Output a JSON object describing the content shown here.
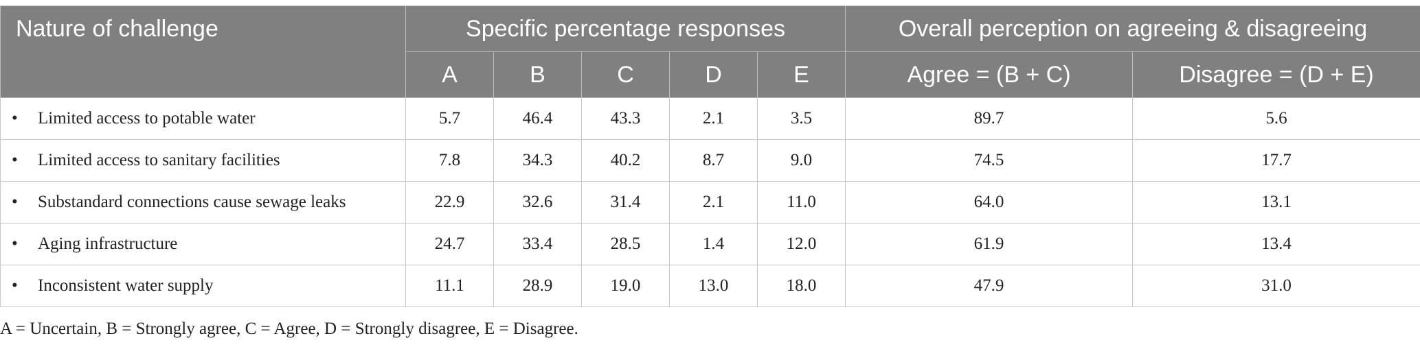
{
  "header": {
    "col_nature": "Nature of challenge",
    "group_specific": "Specific percentage responses",
    "group_overall": "Overall perception on agreeing & disagreeing",
    "sub": [
      "A",
      "B",
      "C",
      "D",
      "E",
      "Agree = (B + C)",
      "Disagree = (D + E)"
    ]
  },
  "rows": [
    {
      "label": "Limited access to potable water",
      "values": [
        "5.7",
        "46.4",
        "43.3",
        "2.1",
        "3.5",
        "89.7",
        "5.6"
      ]
    },
    {
      "label": "Limited access to sanitary facilities",
      "values": [
        "7.8",
        "34.3",
        "40.2",
        "8.7",
        "9.0",
        "74.5",
        "17.7"
      ]
    },
    {
      "label": "Substandard connections cause sewage leaks",
      "values": [
        "22.9",
        "32.6",
        "31.4",
        "2.1",
        "11.0",
        "64.0",
        "13.1"
      ]
    },
    {
      "label": "Aging infrastructure",
      "values": [
        "24.7",
        "33.4",
        "28.5",
        "1.4",
        "12.0",
        "61.9",
        "13.4"
      ]
    },
    {
      "label": "Inconsistent water supply",
      "values": [
        "11.1",
        "28.9",
        "19.0",
        "13.0",
        "18.0",
        "47.9",
        "31.0"
      ]
    }
  ],
  "bullet": "•",
  "footnote": "A = Uncertain, B = Strongly agree, C = Agree, D = Strongly disagree, E = Disagree."
}
